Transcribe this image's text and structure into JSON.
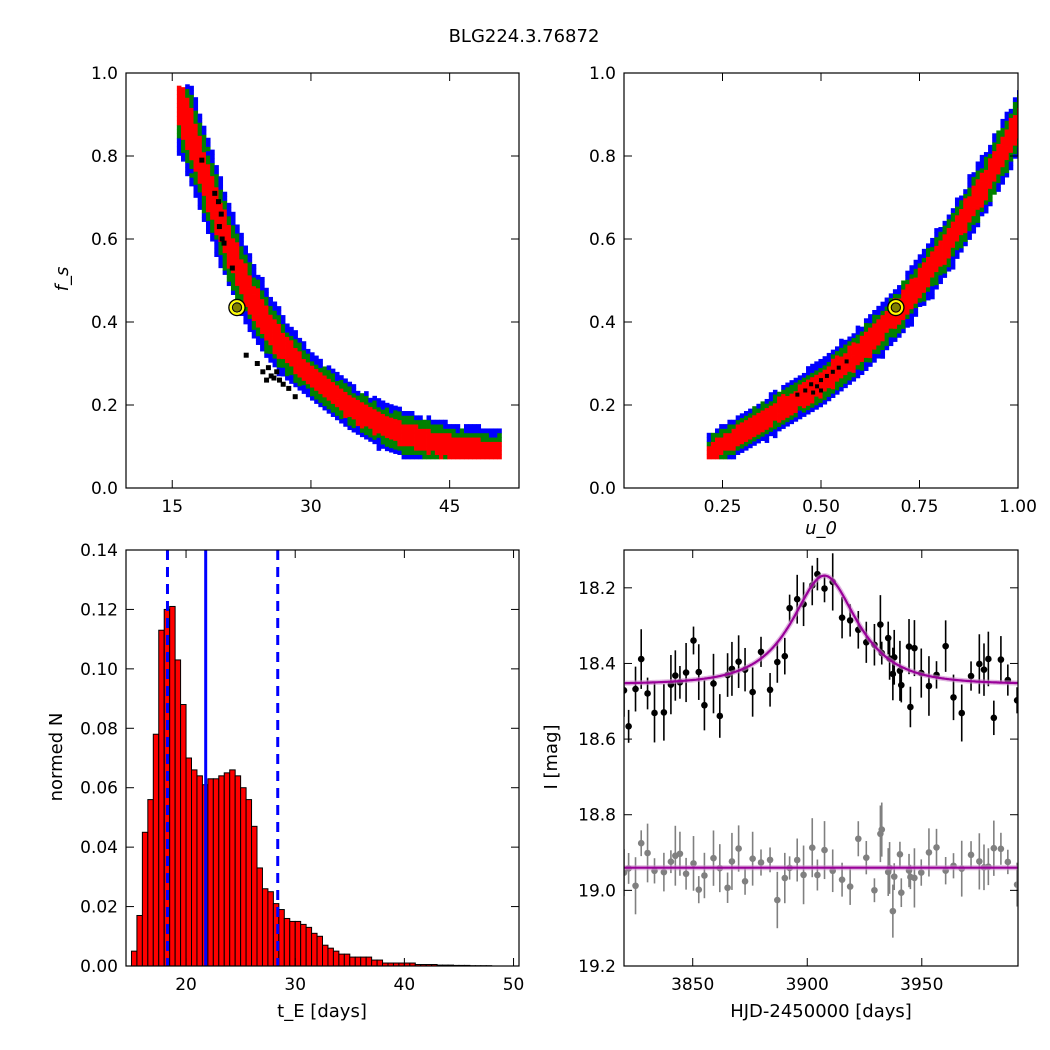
{
  "figure": {
    "title": "BLG224.3.76872"
  },
  "colors": {
    "level1": "#ff0000",
    "level2": "#008000",
    "level3": "#0000ff",
    "samples": "#000000",
    "best_fit_face": "#808000",
    "best_fit_edge": "#000000",
    "best_fit_ring": "#ffff00",
    "hist_fill": "#ff0000",
    "hist_edge": "#000000",
    "median_line": "#0000ff",
    "model": "#990099",
    "data_primary": "#000000",
    "data_residual": "#808080"
  },
  "chart_data": [
    {
      "id": "fs_vs_tE",
      "type": "heatmap",
      "title": "",
      "xlabel": "",
      "ylabel": "f_s",
      "xlim": [
        10,
        52.5
      ],
      "ylim": [
        0.0,
        1.0
      ],
      "xticks": [
        "15",
        "30",
        "45"
      ],
      "yticks": [
        "0.0",
        "0.2",
        "0.4",
        "0.6",
        "0.8",
        "1.0"
      ],
      "description_of_contours": "credible regions of f_s vs t_E: red inner, green middle, blue outer band along an inverse curve",
      "ridge": {
        "x": [
          15.5,
          17,
          19,
          21,
          23,
          25,
          27,
          30,
          34,
          38,
          42,
          46,
          50
        ],
        "y": [
          0.93,
          0.84,
          0.7,
          0.57,
          0.47,
          0.39,
          0.33,
          0.26,
          0.19,
          0.14,
          0.11,
          0.09,
          0.08
        ]
      },
      "best_fit": {
        "x": 22.0,
        "y": 0.435
      },
      "grid": false
    },
    {
      "id": "fs_vs_u0",
      "type": "heatmap",
      "title": "",
      "xlabel": "u_0",
      "ylabel": "",
      "xlim": [
        0.0,
        1.0
      ],
      "ylim": [
        0.0,
        1.0
      ],
      "xticks": [
        "0.25",
        "0.50",
        "0.75",
        "1.00"
      ],
      "yticks": [
        "0.0",
        "0.2",
        "0.4",
        "0.6",
        "0.8",
        "1.0"
      ],
      "ridge": {
        "x": [
          0.21,
          0.3,
          0.4,
          0.5,
          0.6,
          0.7,
          0.8,
          0.9,
          1.0
        ],
        "y": [
          0.08,
          0.13,
          0.19,
          0.25,
          0.33,
          0.43,
          0.56,
          0.71,
          0.88
        ]
      },
      "best_fit": {
        "x": 0.69,
        "y": 0.435
      },
      "grid": false
    },
    {
      "id": "tE_histogram",
      "type": "bar",
      "title": "",
      "xlabel": "t_E  [days]",
      "ylabel": "normed N",
      "xlim": [
        14.5,
        50.5
      ],
      "ylim": [
        0.0,
        0.14
      ],
      "xticks": [
        "20",
        "30",
        "40",
        "50"
      ],
      "yticks": [
        "0.00",
        "0.02",
        "0.04",
        "0.06",
        "0.08",
        "0.10",
        "0.12",
        "0.14"
      ],
      "bin_start": 15.0,
      "bin_width": 0.5,
      "values": [
        0.005,
        0.017,
        0.045,
        0.056,
        0.078,
        0.113,
        0.12,
        0.121,
        0.103,
        0.088,
        0.07,
        0.066,
        0.064,
        0.061,
        0.063,
        0.063,
        0.064,
        0.065,
        0.066,
        0.064,
        0.06,
        0.056,
        0.047,
        0.033,
        0.026,
        0.025,
        0.021,
        0.019,
        0.016,
        0.015,
        0.015,
        0.014,
        0.013,
        0.011,
        0.01,
        0.007,
        0.006,
        0.005,
        0.004,
        0.004,
        0.003,
        0.003,
        0.003,
        0.003,
        0.002,
        0.002,
        0.001,
        0.001,
        0.001,
        0.001,
        0.001,
        0.001,
        0.0005,
        0.0005,
        0.0005,
        0.0005,
        0.0003,
        0.0003,
        0.0003,
        0.0002,
        0.0002,
        0.0002,
        0.0001,
        0.0001,
        0.0001,
        0.0001
      ],
      "median": 21.8,
      "lower": 18.3,
      "upper": 28.4,
      "grid": false
    },
    {
      "id": "light_curve",
      "type": "scatter",
      "title": "",
      "xlabel": "HJD-2450000 [days]",
      "ylabel": "I [mag]",
      "xlim": [
        3820,
        3992
      ],
      "ylim": [
        19.2,
        18.1
      ],
      "xticks": [
        "3850",
        "3900",
        "3950"
      ],
      "yticks": [
        "18.2",
        "18.4",
        "18.6",
        "18.8",
        "19.0",
        "19.2"
      ],
      "y_inverted": true,
      "model": {
        "t0": 3907.5,
        "tE": 22.0,
        "u0": 0.69,
        "base_mag": 18.455,
        "fs": 0.435
      },
      "residual_offset_mag": 18.94,
      "series": [
        {
          "name": "",
          "scatter_sigma": 0.055,
          "epoch_range": [
            3820,
            3992
          ]
        },
        {
          "name": "",
          "scatter_sigma": 0.05,
          "epoch_range": [
            3820,
            3992
          ]
        }
      ],
      "grid": false
    }
  ]
}
